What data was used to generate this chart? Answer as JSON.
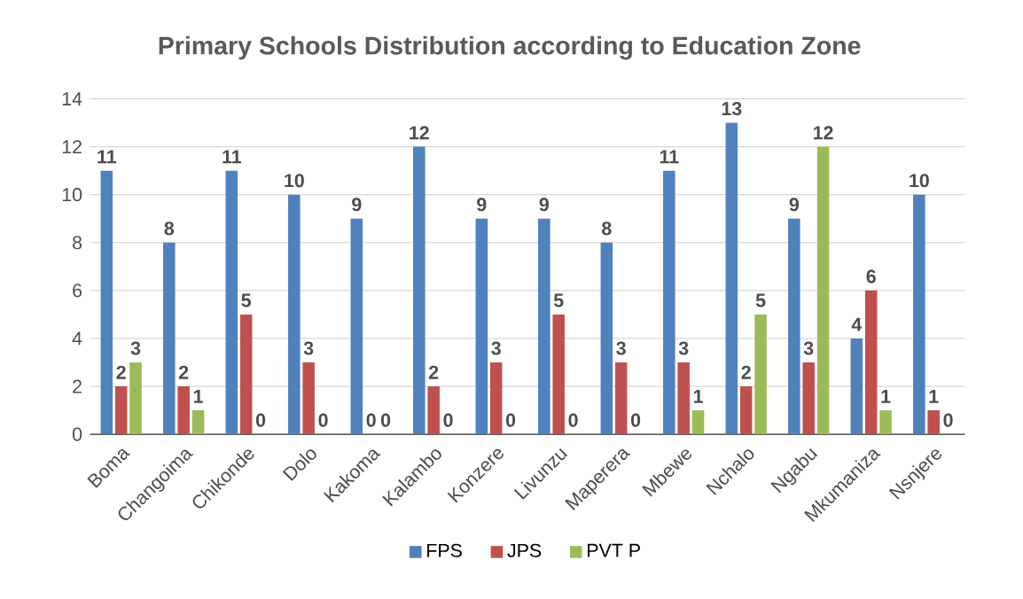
{
  "chart_data": {
    "type": "bar",
    "title": "Primary Schools Distribution according to Education Zone",
    "categories": [
      "Boma",
      "Changoima",
      "Chikonde",
      "Dolo",
      "Kakoma",
      "Kalambo",
      "Konzere",
      "Livunzu",
      "Maperera",
      "Mbewe",
      "Nchalo",
      "Ngabu",
      "Mkumaniza",
      "Nsnjere"
    ],
    "series": [
      {
        "name": "FPS",
        "color": "#4f81bd",
        "values": [
          11,
          8,
          11,
          10,
          9,
          12,
          9,
          9,
          8,
          11,
          13,
          9,
          4,
          10
        ]
      },
      {
        "name": "JPS",
        "color": "#c0504d",
        "values": [
          2,
          2,
          5,
          3,
          0,
          2,
          3,
          5,
          3,
          3,
          2,
          3,
          6,
          1
        ]
      },
      {
        "name": "PVT P",
        "color": "#9bbb59",
        "values": [
          3,
          1,
          0,
          0,
          0,
          0,
          0,
          0,
          0,
          1,
          5,
          12,
          1,
          0
        ]
      }
    ],
    "ylim": [
      0,
      14
    ],
    "yticks": [
      0,
      2,
      4,
      6,
      8,
      10,
      12,
      14
    ],
    "grid": "y",
    "legend": "bottom",
    "data_labels": true
  }
}
